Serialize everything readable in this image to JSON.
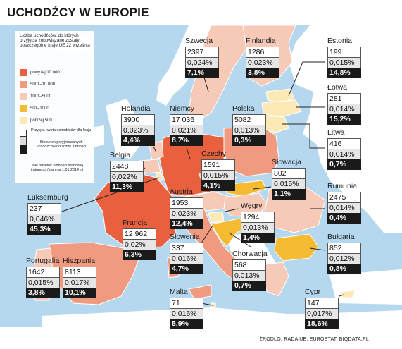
{
  "title": "UCHODŹCY W EUROPIE",
  "source": "ŹRÓDŁO: RADA UE, EUROSTAT, BIQDATA.PL",
  "legend": {
    "header": "Liczba uchodźców, do których przyjęcia zobowiązane zostały poszczególne kraje UE 22 września",
    "items": [
      {
        "label": "powyżej 10 000",
        "color": "#e8603e"
      },
      {
        "label": "5001–10 000",
        "color": "#f09a80"
      },
      {
        "label": "1001–5000",
        "color": "#f7c9b7"
      },
      {
        "label": "501–1000",
        "color": "#f5bb33"
      },
      {
        "label": "poniżej 500",
        "color": "#fde9b5"
      }
    ],
    "note_quota": "Przyjęta kwota uchodźców dla kraju",
    "note_ratio": "Stosunek przyjmowanych uchodźców do liczby ludności",
    "note_share": "Jaki odsetek ludności stanowią imigranci (stan na 1.01.2014 r.)"
  },
  "countries": {
    "szwecja": {
      "name": "Szwecja",
      "quota": "2397",
      "ratio": "0,024%",
      "share": "7,1%"
    },
    "finlandia": {
      "name": "Finlandia",
      "quota": "1286",
      "ratio": "0,023%",
      "share": "3,8%"
    },
    "estonia": {
      "name": "Estonia",
      "quota": "199",
      "ratio": "0,015%",
      "share": "14,8%"
    },
    "lotwa": {
      "name": "Łotwa",
      "quota": "281",
      "ratio": "0,014%",
      "share": "15,2%"
    },
    "litwa": {
      "name": "Litwa",
      "quota": "416",
      "ratio": "0,014%",
      "share": "0,7%"
    },
    "holandia": {
      "name": "Holandia",
      "quota": "3900",
      "ratio": "0,023%",
      "share": "4,4%"
    },
    "niemcy": {
      "name": "Niemcy",
      "quota": "17 036",
      "ratio": "0,021%",
      "share": "8,7%"
    },
    "polska": {
      "name": "Polska",
      "quota": "5082",
      "ratio": "0,013%",
      "share": "0,3%"
    },
    "belgia": {
      "name": "Belgia",
      "quota": "2448",
      "ratio": "0,022%",
      "share": "11,3%"
    },
    "czechy": {
      "name": "Czechy",
      "quota": "1591",
      "ratio": "0,015%",
      "share": "4,1%"
    },
    "slowacja": {
      "name": "Słowacja",
      "quota": "802",
      "ratio": "0,015%",
      "share": "1,1%"
    },
    "luksemburg": {
      "name": "Luksemburg",
      "quota": "237",
      "ratio": "0,046%",
      "share": "45,3%"
    },
    "austria": {
      "name": "Austria",
      "quota": "1953",
      "ratio": "0,023%",
      "share": "12,4%"
    },
    "rumunia": {
      "name": "Rumunia",
      "quota": "2475",
      "ratio": "0,014%",
      "share": "0,4%"
    },
    "wegry": {
      "name": "Węgry",
      "quota": "1294",
      "ratio": "0,013%",
      "share": "1,4%"
    },
    "francja": {
      "name": "Francja",
      "quota": "12 962",
      "ratio": "0,02%",
      "share": "6,3%"
    },
    "bulgaria": {
      "name": "Bułgaria",
      "quota": "852",
      "ratio": "0,012%",
      "share": "0,8%"
    },
    "slowenia": {
      "name": "Słowenia",
      "quota": "337",
      "ratio": "0,016%",
      "share": "4,7%"
    },
    "chorwacja": {
      "name": "Chorwacja",
      "quota": "568",
      "ratio": "0,013%",
      "share": "0,7%"
    },
    "portugalia": {
      "name": "Portugalia",
      "quota": "1642",
      "ratio": "0,015%",
      "share": "3,8%"
    },
    "hiszpania": {
      "name": "Hiszpania",
      "quota": "8113",
      "ratio": "0,017%",
      "share": "10,1%"
    },
    "malta": {
      "name": "Malta",
      "quota": "71",
      "ratio": "0,016%",
      "share": "5,9%"
    },
    "cypr": {
      "name": "Cypr",
      "quota": "147",
      "ratio": "0,017%",
      "share": "18,6%"
    }
  },
  "colors": {
    "sea": "#b5d8ef",
    "non_eu_land": "#ffffff",
    "border": "#ffffff"
  }
}
